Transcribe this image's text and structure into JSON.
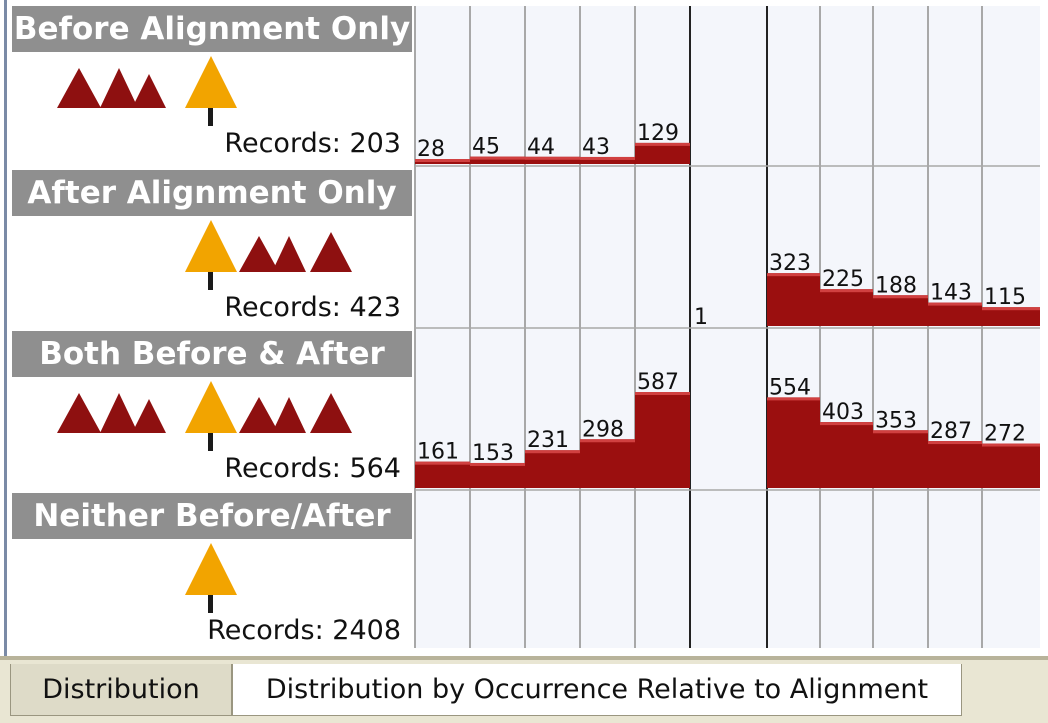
{
  "colors": {
    "bar": "#9b0f0f",
    "bar_top": "#d04040",
    "event_icon": "#8e1010",
    "alignment_icon": "#f2a400",
    "header_bg": "#8f8f8f",
    "grid_line": "#a8a8a8",
    "alignment_line": "#222222"
  },
  "groups": [
    {
      "header": "Before Alignment Only",
      "records": "Records: 203",
      "glyphs": [
        "event-triple",
        "alignment"
      ]
    },
    {
      "header": "After Alignment Only",
      "records": "Records: 423",
      "glyphs": [
        "alignment",
        "event-double",
        "event-single"
      ]
    },
    {
      "header": "Both Before & After",
      "records": "Records: 564",
      "glyphs": [
        "event-triple",
        "alignment",
        "event-double",
        "event-single"
      ]
    },
    {
      "header": "Neither Before/After",
      "records": "Records: 2408",
      "glyphs": [
        "alignment"
      ]
    }
  ],
  "tabs": [
    {
      "label": "Distribution",
      "selected": false
    },
    {
      "label": "Distribution by Occurrence Relative to Alignment",
      "selected": true
    }
  ],
  "chart_data": {
    "type": "bar",
    "grid": true,
    "columns_before_alignment": 5,
    "columns_after_alignment": 5,
    "rows": [
      {
        "name": "Before Alignment Only",
        "before": [
          28,
          45,
          44,
          43,
          129
        ],
        "center": null,
        "after": []
      },
      {
        "name": "After Alignment Only",
        "before": [],
        "center": 1,
        "after": [
          323,
          225,
          188,
          143,
          115
        ]
      },
      {
        "name": "Both Before & After",
        "before": [
          161,
          153,
          231,
          298,
          587
        ],
        "center": null,
        "after": [
          554,
          403,
          353,
          287,
          272
        ]
      },
      {
        "name": "Neither Before/After",
        "before": [],
        "center": null,
        "after": []
      }
    ]
  }
}
